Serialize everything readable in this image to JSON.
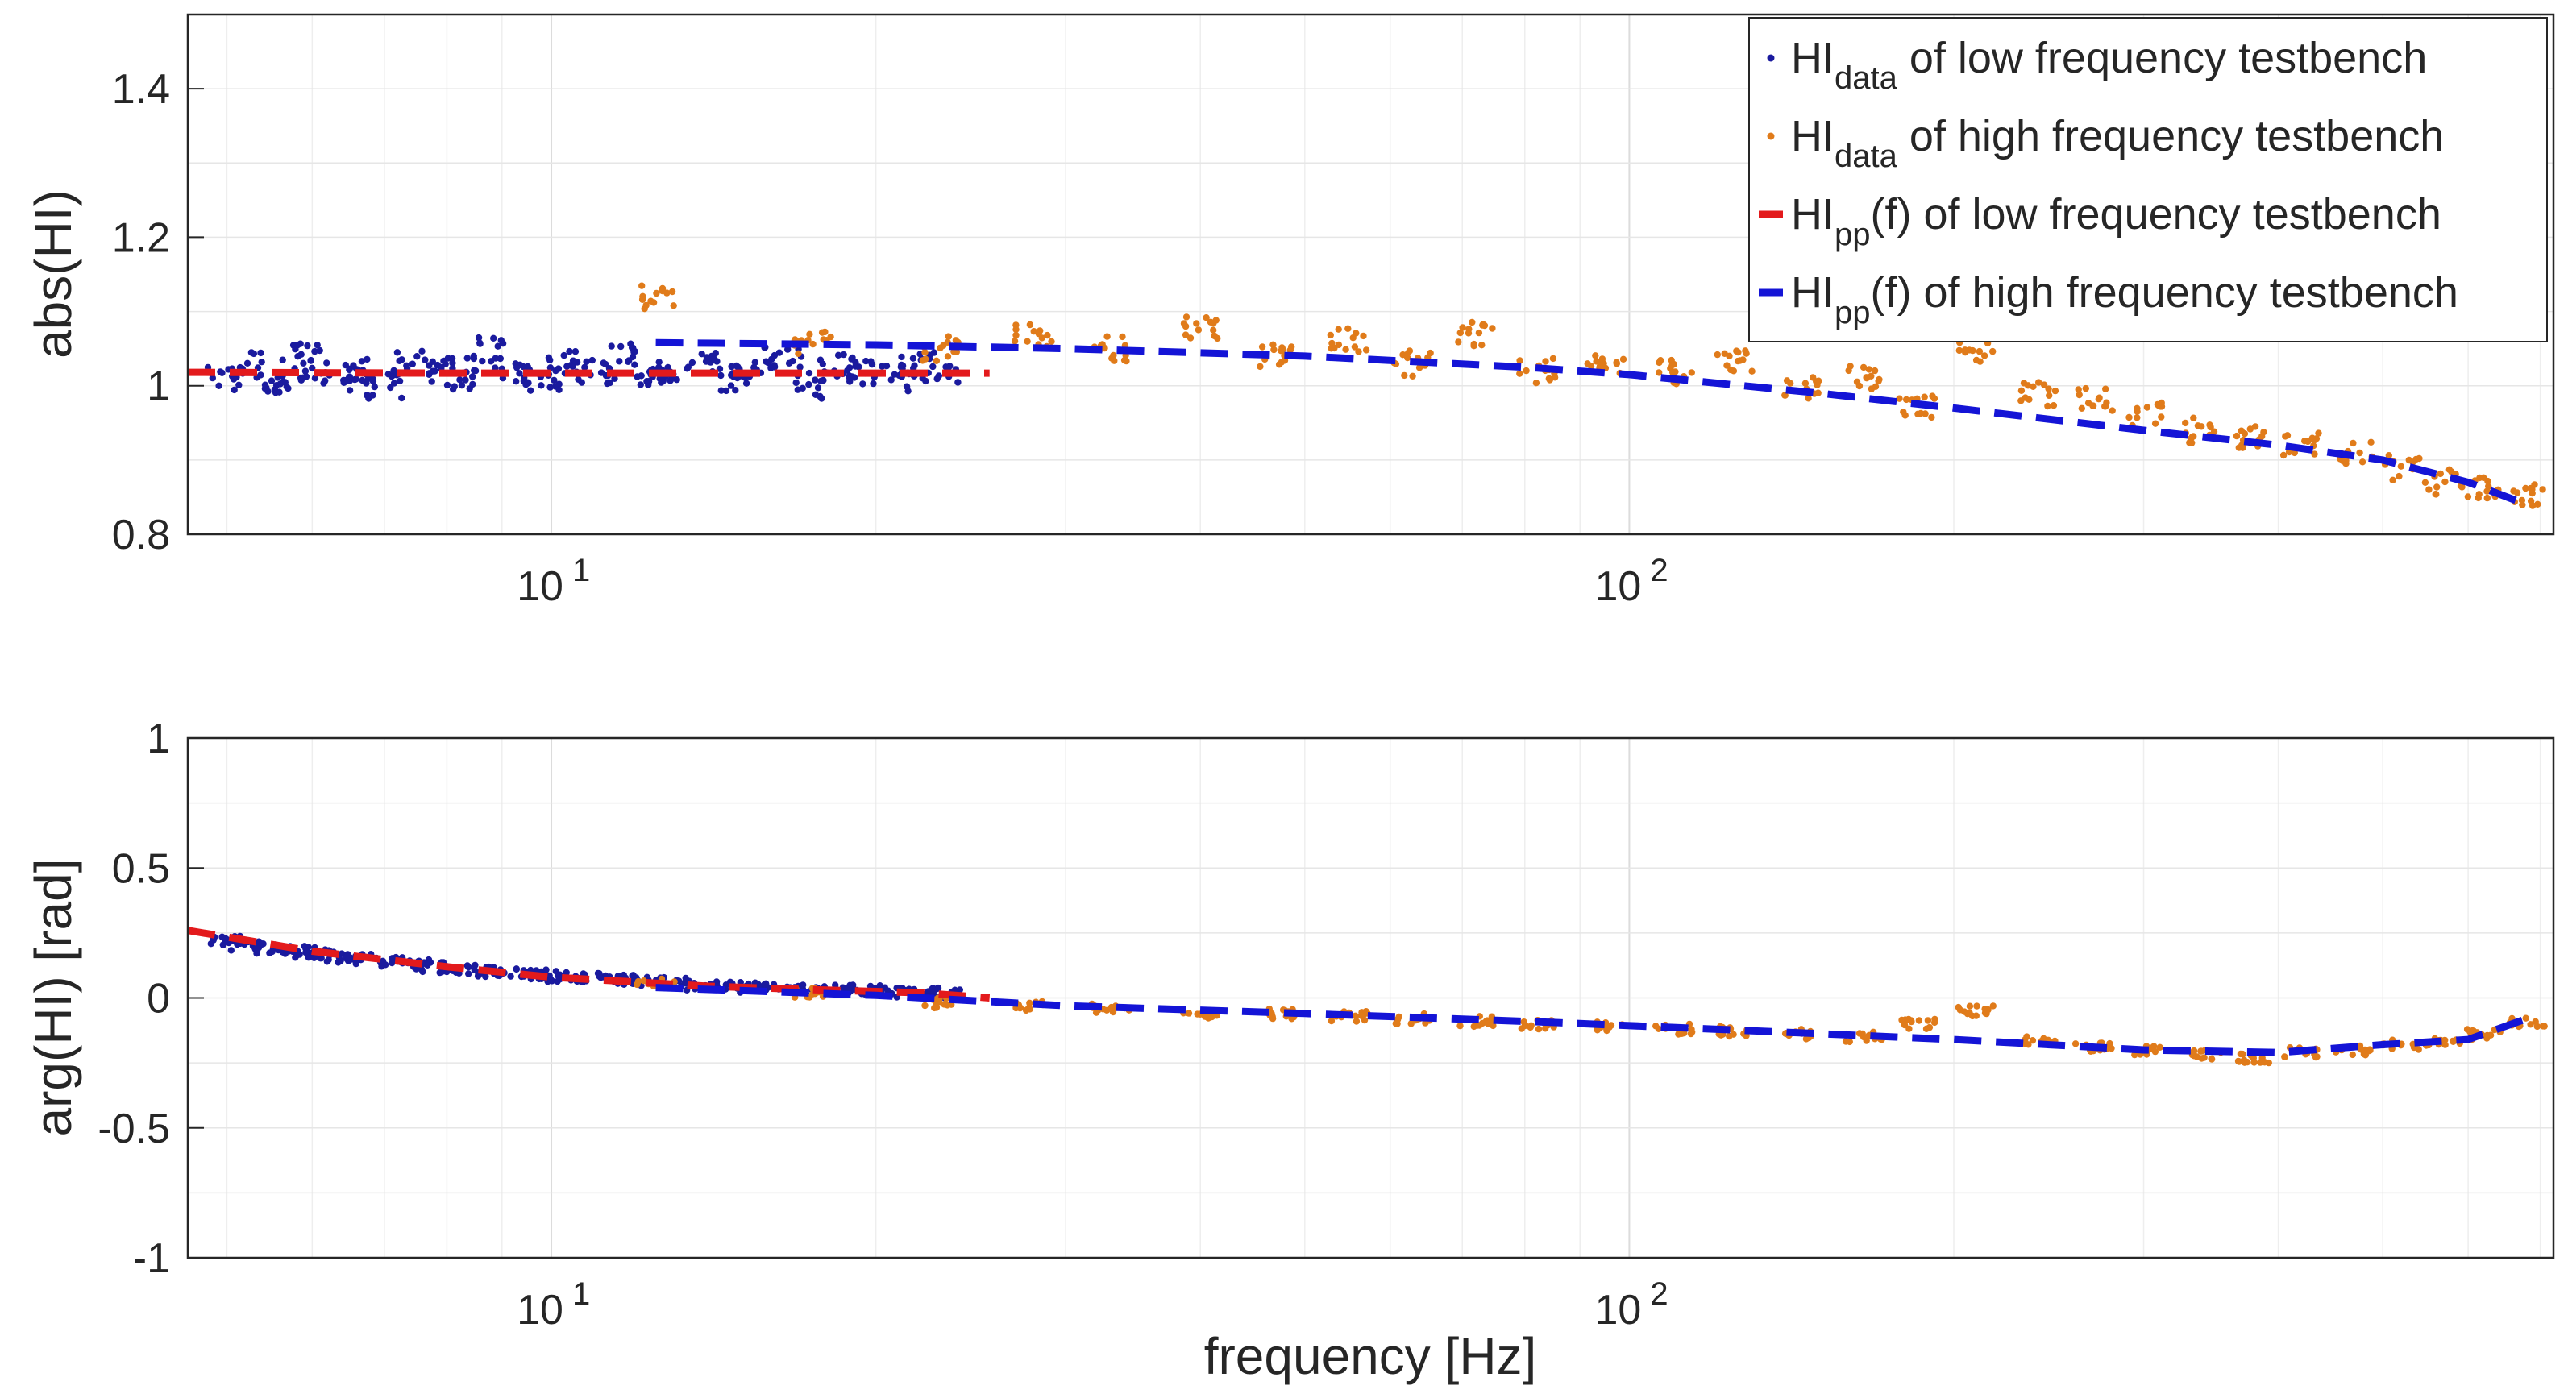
{
  "chart_data": [
    {
      "type": "scatter",
      "panel": "top",
      "title": "",
      "xlabel": "",
      "ylabel": "abs(HI)",
      "xscale": "log",
      "xlim": [
        4.6,
        720
      ],
      "ylim": [
        0.8,
        1.5
      ],
      "yticks": [
        "0.8",
        "1",
        "1.2",
        "1.4"
      ],
      "ytick_values": [
        0.8,
        1.0,
        1.2,
        1.4
      ],
      "xticks": [
        {
          "base": "10",
          "exp": "1"
        },
        {
          "base": "10",
          "exp": "2"
        }
      ],
      "xtick_values": [
        10,
        100
      ],
      "grid": true,
      "legend_position": "top-right",
      "legend": [
        {
          "main": "HI",
          "sub": "data",
          "rest": " of low frequency testbench",
          "color": "#1a1a9e",
          "marker": "dot"
        },
        {
          "main": "HI",
          "sub": "data",
          "rest": " of high frequency testbench",
          "color": "#e07b1a",
          "marker": "dot"
        },
        {
          "main": "HI",
          "sub": "pp",
          "rest": "(f) of low frequency testbench",
          "color": "#e31a1c",
          "marker": "dash"
        },
        {
          "main": "HI",
          "sub": "pp",
          "rest": "(f) of high frequency testbench",
          "color": "#1414d6",
          "marker": "dash"
        }
      ],
      "series": [
        {
          "name": "HI_data of low frequency testbench",
          "kind": "scatter",
          "color": "#1a1a9e",
          "x": [
            5.0,
            5.2,
            5.5,
            5.8,
            6.0,
            6.3,
            6.6,
            7.0,
            7.4,
            7.8,
            8.2,
            8.7,
            9.2,
            9.8,
            10.3,
            11.0,
            11.6,
            12.3,
            13.0,
            13.8,
            14.6,
            15.5,
            16.4,
            17.4,
            18.4,
            19.5,
            20.7,
            21.9,
            23.0
          ],
          "y": [
            1.01,
            1.03,
            1.0,
            1.02,
            1.04,
            1.01,
            1.02,
            1.0,
            1.03,
            1.02,
            1.01,
            1.05,
            1.02,
            1.01,
            1.03,
            1.02,
            1.04,
            1.01,
            1.02,
            1.03,
            1.01,
            1.02,
            1.04,
            1.0,
            1.03,
            1.02,
            1.01,
            1.03,
            1.02
          ]
        },
        {
          "name": "HI_data of high frequency testbench",
          "kind": "scatter",
          "color": "#e07b1a",
          "x": [
            12.5,
            17.5,
            23.0,
            28.0,
            33.0,
            40.0,
            47.0,
            55.0,
            63.0,
            72.0,
            82.0,
            95.0,
            110.0,
            125.0,
            145.0,
            165.0,
            185.0,
            210.0,
            240.0,
            270.0,
            300.0,
            340.0,
            380.0,
            420.0,
            470.0,
            520.0,
            570.0,
            620.0,
            680.0
          ],
          "y": [
            1.12,
            1.06,
            1.05,
            1.07,
            1.05,
            1.08,
            1.04,
            1.06,
            1.03,
            1.07,
            1.02,
            1.03,
            1.02,
            1.03,
            1.0,
            1.01,
            0.97,
            1.05,
            0.99,
            0.98,
            0.96,
            0.94,
            0.93,
            0.92,
            0.91,
            0.89,
            0.87,
            0.86,
            0.85
          ]
        },
        {
          "name": "HI_pp(f) of low frequency testbench",
          "kind": "line",
          "color": "#e31a1c",
          "x": [
            4.6,
            8.0,
            14.0,
            20.0,
            25.5
          ],
          "y": [
            1.018,
            1.017,
            1.017,
            1.017,
            1.017
          ]
        },
        {
          "name": "HI_pp(f) of high frequency testbench",
          "kind": "line",
          "color": "#1414d6",
          "x": [
            12.5,
            20.0,
            30.0,
            50.0,
            80.0,
            100.0,
            150.0,
            200.0,
            300.0,
            400.0,
            500.0,
            600.0,
            680.0
          ],
          "y": [
            1.058,
            1.055,
            1.05,
            1.04,
            1.025,
            1.015,
            0.99,
            0.97,
            0.94,
            0.92,
            0.9,
            0.87,
            0.84
          ]
        }
      ]
    },
    {
      "type": "scatter",
      "panel": "bottom",
      "title": "",
      "xlabel": "frequency [Hz]",
      "ylabel": "arg(HI) [rad]",
      "xscale": "log",
      "xlim": [
        4.6,
        720
      ],
      "ylim": [
        -1,
        1
      ],
      "yticks": [
        "-1",
        "-0.5",
        "0",
        "0.5",
        "1"
      ],
      "ytick_values": [
        -1,
        -0.5,
        0,
        0.5,
        1
      ],
      "xticks": [
        {
          "base": "10",
          "exp": "1"
        },
        {
          "base": "10",
          "exp": "2"
        }
      ],
      "xtick_values": [
        10,
        100
      ],
      "grid": true,
      "series": [
        {
          "name": "HI_data of low frequency testbench",
          "kind": "scatter",
          "color": "#1a1a9e",
          "x": [
            5.0,
            5.2,
            5.5,
            5.8,
            6.0,
            6.3,
            6.6,
            7.0,
            7.4,
            7.8,
            8.2,
            8.7,
            9.2,
            9.8,
            10.3,
            11.0,
            11.6,
            12.3,
            13.0,
            13.8,
            14.6,
            15.5,
            16.4,
            17.4,
            18.4,
            19.5,
            20.7,
            21.9,
            23.0
          ],
          "y": [
            0.22,
            0.2,
            0.19,
            0.18,
            0.17,
            0.16,
            0.15,
            0.14,
            0.13,
            0.12,
            0.11,
            0.1,
            0.1,
            0.09,
            0.08,
            0.08,
            0.07,
            0.06,
            0.06,
            0.05,
            0.05,
            0.04,
            0.04,
            0.03,
            0.03,
            0.03,
            0.02,
            0.02,
            0.02
          ]
        },
        {
          "name": "HI_data of high frequency testbench",
          "kind": "scatter",
          "color": "#e07b1a",
          "x": [
            12.5,
            17.5,
            23.0,
            28.0,
            33.0,
            40.0,
            47.0,
            55.0,
            63.0,
            72.0,
            82.0,
            95.0,
            110.0,
            125.0,
            145.0,
            165.0,
            185.0,
            210.0,
            240.0,
            270.0,
            300.0,
            340.0,
            380.0,
            420.0,
            470.0,
            520.0,
            570.0,
            620.0,
            680.0
          ],
          "y": [
            0.06,
            0.02,
            -0.02,
            -0.03,
            -0.04,
            -0.06,
            -0.06,
            -0.07,
            -0.08,
            -0.09,
            -0.1,
            -0.11,
            -0.12,
            -0.13,
            -0.14,
            -0.15,
            -0.1,
            -0.05,
            -0.16,
            -0.19,
            -0.2,
            -0.22,
            -0.23,
            -0.21,
            -0.2,
            -0.18,
            -0.17,
            -0.14,
            -0.09
          ]
        },
        {
          "name": "HI_pp(f) of low frequency testbench",
          "kind": "line",
          "color": "#e31a1c",
          "x": [
            4.6,
            6.0,
            8.0,
            10.0,
            14.0,
            18.0,
            22.0,
            25.5
          ],
          "y": [
            0.26,
            0.18,
            0.12,
            0.08,
            0.045,
            0.03,
            0.02,
            0.0
          ]
        },
        {
          "name": "HI_pp(f) of high frequency testbench",
          "kind": "line",
          "color": "#1414d6",
          "x": [
            12.5,
            20.0,
            30.0,
            50.0,
            80.0,
            120.0,
            200.0,
            300.0,
            400.0,
            500.0,
            600.0,
            680.0
          ],
          "y": [
            0.04,
            0.01,
            -0.03,
            -0.06,
            -0.09,
            -0.12,
            -0.16,
            -0.2,
            -0.21,
            -0.18,
            -0.16,
            -0.08
          ]
        }
      ]
    }
  ]
}
